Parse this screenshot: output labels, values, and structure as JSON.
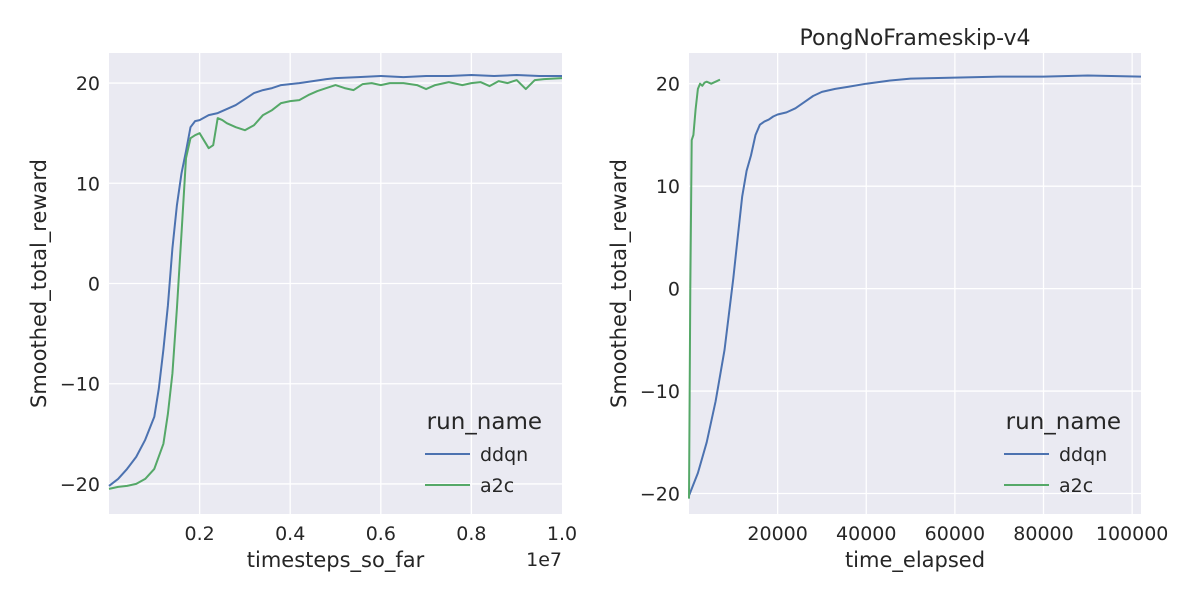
{
  "colors": {
    "background": "#EAEAF2",
    "grid": "#FFFFFF",
    "ddqn": "#4C72B0",
    "a2c": "#55A868"
  },
  "chart_data": [
    {
      "type": "line",
      "title": "",
      "xlabel": "timesteps_so_far",
      "ylabel": "Smoothed_total_reward",
      "x_offset_label": "1e7",
      "xlim": [
        0.0,
        1.0
      ],
      "ylim": [
        -23,
        23
      ],
      "xticks": [
        "0.2",
        "0.4",
        "0.6",
        "0.8",
        "1.0"
      ],
      "yticks": [
        "20",
        "10",
        "0",
        "−10",
        "−20"
      ],
      "grid": true,
      "legend": {
        "title": "run_name",
        "placement": "lower-right",
        "entries": [
          "ddqn",
          "a2c"
        ]
      },
      "series": [
        {
          "name": "ddqn",
          "x": [
            0.0,
            0.02,
            0.04,
            0.06,
            0.08,
            0.1,
            0.11,
            0.12,
            0.13,
            0.14,
            0.15,
            0.16,
            0.17,
            0.18,
            0.19,
            0.2,
            0.22,
            0.24,
            0.26,
            0.28,
            0.3,
            0.32,
            0.34,
            0.36,
            0.38,
            0.4,
            0.42,
            0.45,
            0.48,
            0.5,
            0.55,
            0.6,
            0.65,
            0.7,
            0.75,
            0.8,
            0.85,
            0.9,
            0.95,
            1.0
          ],
          "y": [
            -20.2,
            -19.5,
            -18.5,
            -17.3,
            -15.6,
            -13.3,
            -10.5,
            -6.6,
            -2.2,
            3.5,
            7.8,
            11.0,
            13.2,
            15.6,
            16.2,
            16.3,
            16.8,
            17.0,
            17.4,
            17.8,
            18.4,
            19.0,
            19.3,
            19.5,
            19.8,
            19.9,
            20.0,
            20.2,
            20.4,
            20.5,
            20.6,
            20.7,
            20.6,
            20.7,
            20.7,
            20.8,
            20.7,
            20.8,
            20.7,
            20.7
          ]
        },
        {
          "name": "a2c",
          "x": [
            0.0,
            0.02,
            0.04,
            0.06,
            0.08,
            0.1,
            0.12,
            0.13,
            0.14,
            0.15,
            0.16,
            0.17,
            0.18,
            0.19,
            0.2,
            0.22,
            0.23,
            0.24,
            0.25,
            0.26,
            0.28,
            0.3,
            0.32,
            0.34,
            0.36,
            0.38,
            0.4,
            0.42,
            0.44,
            0.46,
            0.48,
            0.5,
            0.52,
            0.54,
            0.56,
            0.58,
            0.6,
            0.62,
            0.65,
            0.68,
            0.7,
            0.72,
            0.75,
            0.78,
            0.8,
            0.82,
            0.84,
            0.86,
            0.88,
            0.9,
            0.92,
            0.94,
            0.96,
            1.0
          ],
          "y": [
            -20.5,
            -20.3,
            -20.2,
            -20.0,
            -19.5,
            -18.5,
            -16.0,
            -13.0,
            -9.0,
            -2.5,
            5.0,
            12.5,
            14.5,
            14.8,
            15.0,
            13.5,
            13.8,
            16.5,
            16.3,
            16.0,
            15.6,
            15.3,
            15.8,
            16.8,
            17.3,
            18.0,
            18.2,
            18.3,
            18.8,
            19.2,
            19.5,
            19.8,
            19.5,
            19.3,
            19.9,
            20.0,
            19.8,
            20.0,
            20.0,
            19.8,
            19.4,
            19.8,
            20.1,
            19.8,
            20.0,
            20.1,
            19.7,
            20.2,
            20.0,
            20.3,
            19.4,
            20.3,
            20.4,
            20.5
          ]
        }
      ]
    },
    {
      "type": "line",
      "title": "PongNoFrameskip-v4",
      "xlabel": "time_elapsed",
      "ylabel": "Smoothed_total_reward",
      "xlim": [
        0,
        102000
      ],
      "ylim": [
        -22,
        23
      ],
      "xticks": [
        "20000",
        "40000",
        "60000",
        "80000",
        "100000"
      ],
      "yticks": [
        "20",
        "10",
        "0",
        "−10",
        "−20"
      ],
      "grid": true,
      "legend": {
        "title": "run_name",
        "placement": "lower-right",
        "entries": [
          "ddqn",
          "a2c"
        ]
      },
      "series": [
        {
          "name": "ddqn",
          "x": [
            0,
            2000,
            4000,
            6000,
            8000,
            9000,
            10000,
            11000,
            12000,
            13000,
            14000,
            15000,
            16000,
            17000,
            18000,
            19000,
            20000,
            22000,
            24000,
            26000,
            28000,
            30000,
            33000,
            36000,
            40000,
            45000,
            50000,
            60000,
            70000,
            80000,
            90000,
            102000
          ],
          "y": [
            -20.2,
            -18.0,
            -15.0,
            -11.0,
            -6.0,
            -2.5,
            1.0,
            5.0,
            9.0,
            11.5,
            13.0,
            15.0,
            16.0,
            16.3,
            16.5,
            16.8,
            17.0,
            17.2,
            17.6,
            18.2,
            18.8,
            19.2,
            19.5,
            19.7,
            20.0,
            20.3,
            20.5,
            20.6,
            20.7,
            20.7,
            20.8,
            20.7
          ]
        },
        {
          "name": "a2c",
          "x": [
            0,
            300,
            600,
            1000,
            1500,
            2000,
            2500,
            3000,
            3500,
            4000,
            5000,
            6000,
            7000
          ],
          "y": [
            -20.5,
            0.0,
            14.5,
            15.0,
            17.5,
            19.5,
            20.0,
            19.8,
            20.1,
            20.2,
            20.0,
            20.2,
            20.4
          ]
        }
      ]
    }
  ]
}
